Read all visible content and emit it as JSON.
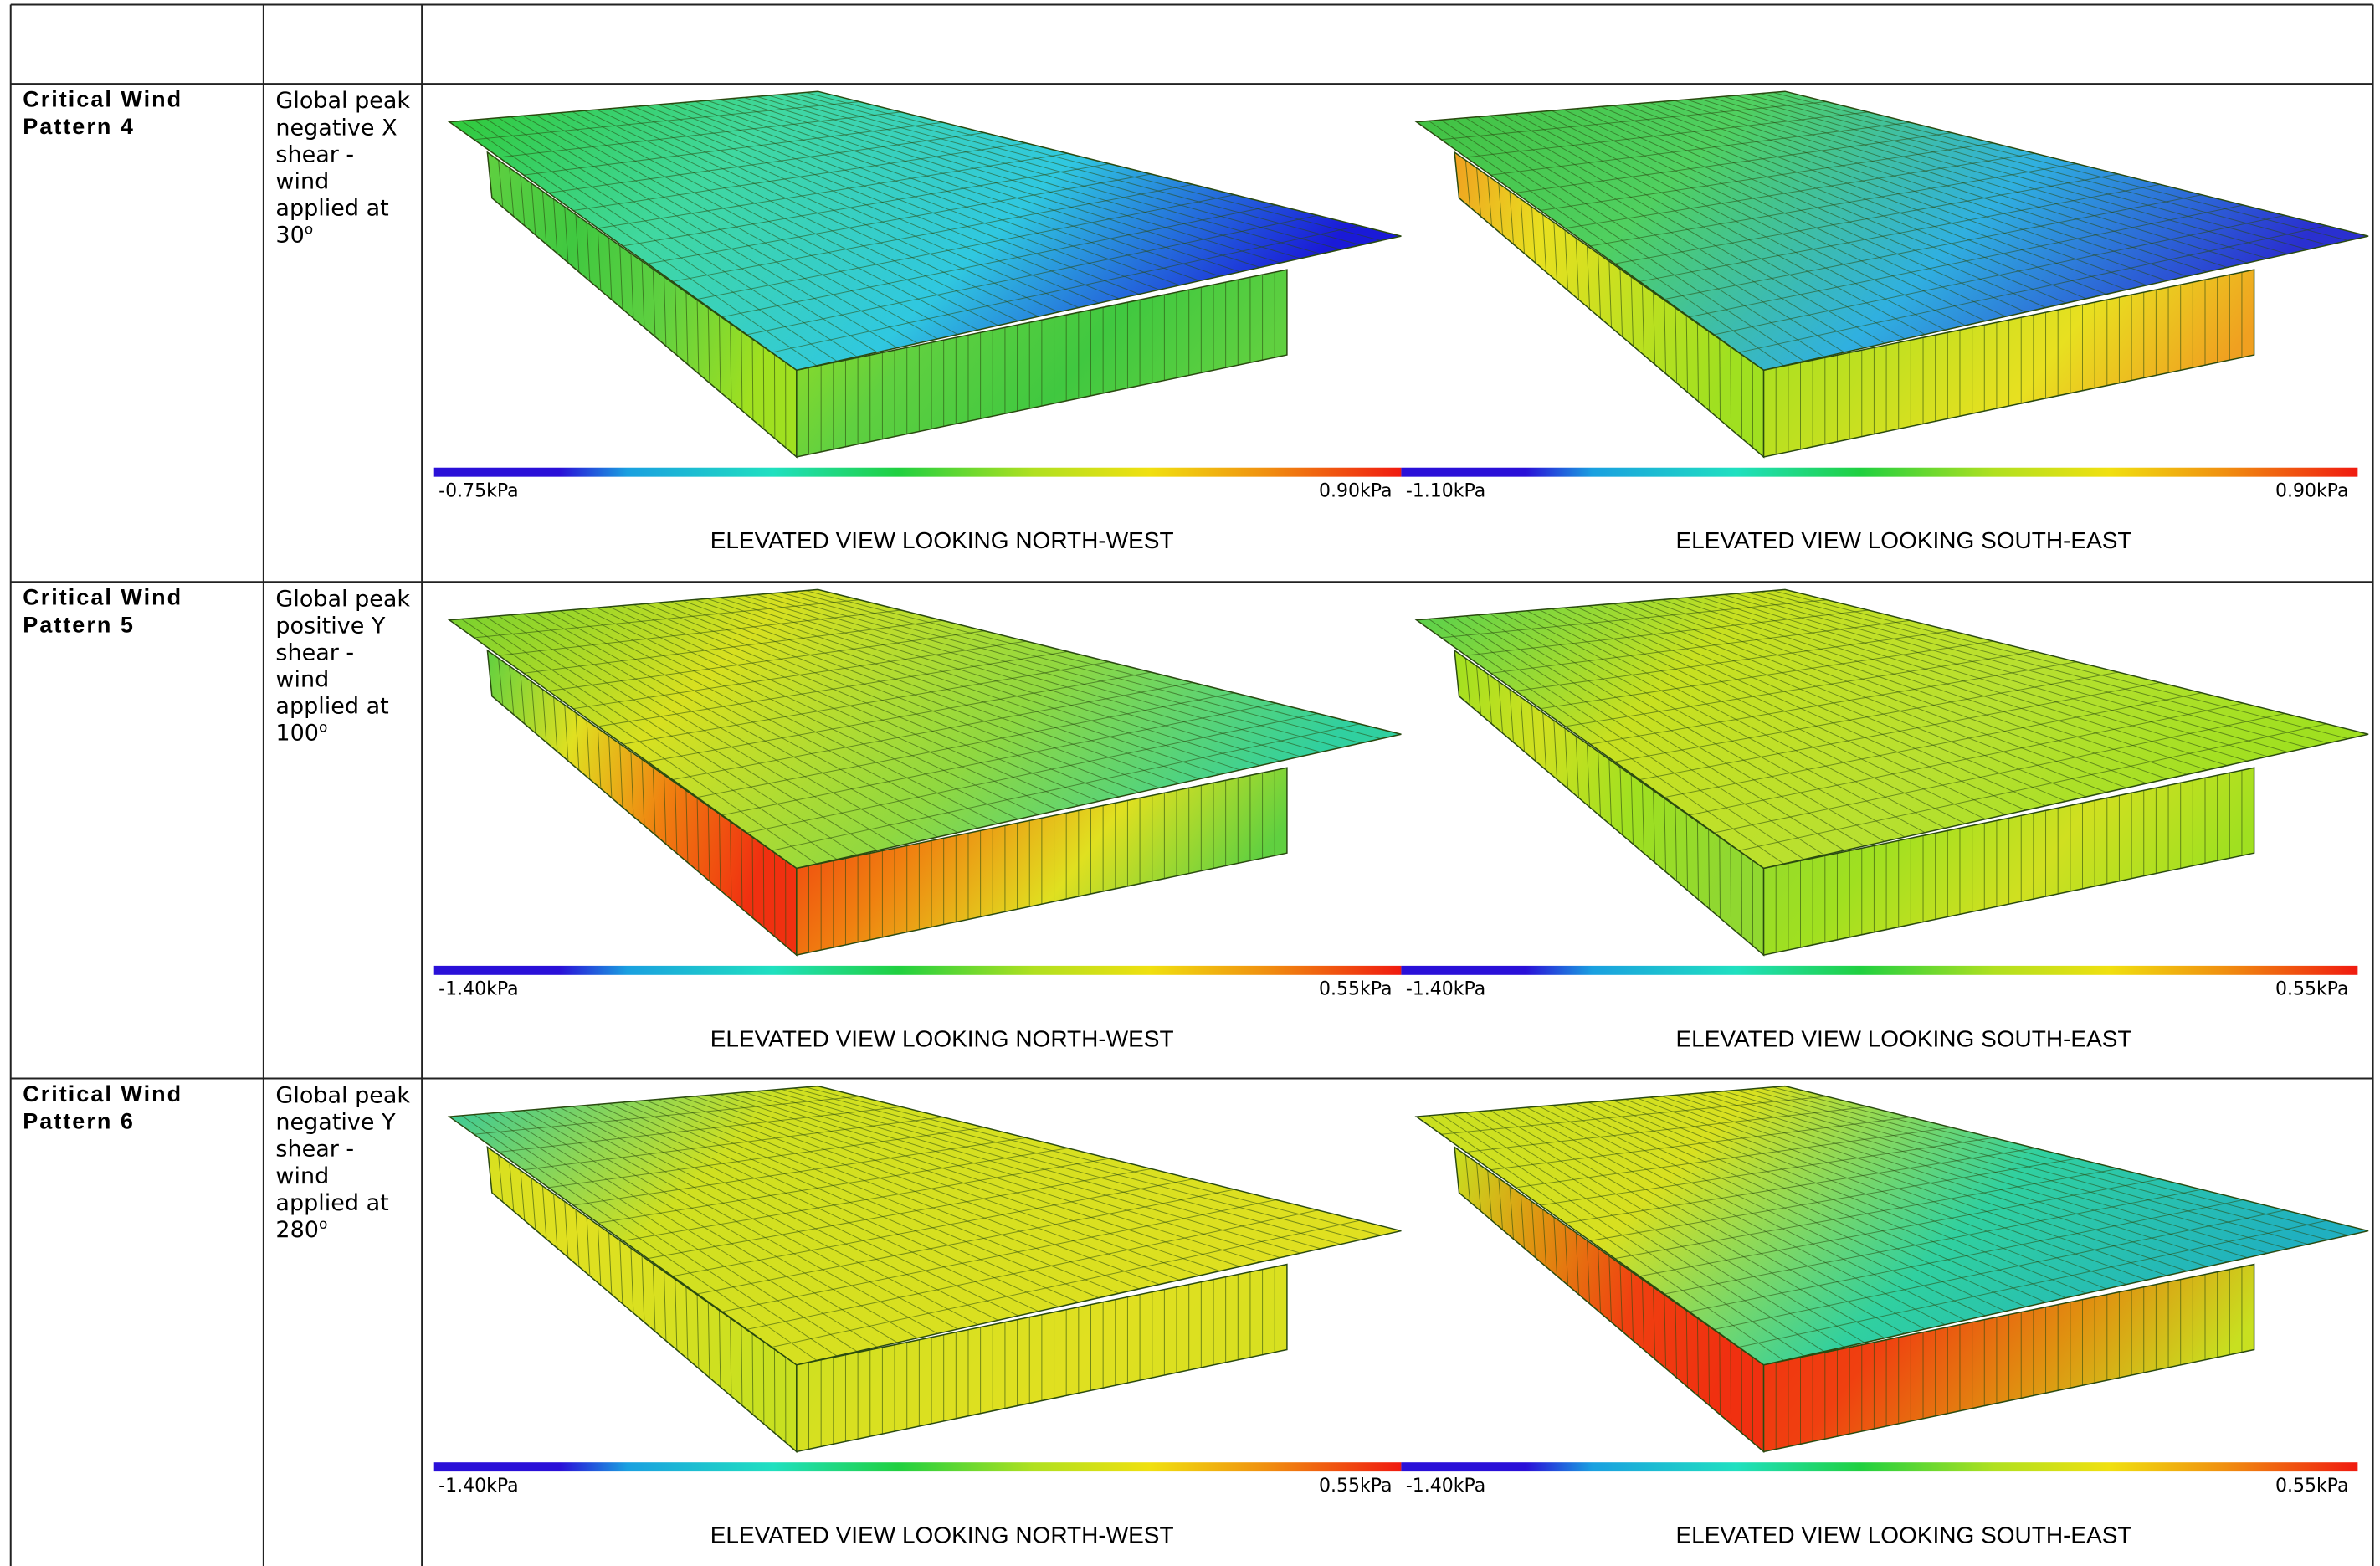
{
  "rows": [
    {
      "pattern": [
        "Critical Wind",
        "Pattern 4"
      ],
      "description": [
        "Global peak",
        "negative X",
        "shear -",
        "wind",
        "applied at",
        "30"
      ],
      "degree": "o",
      "views": [
        {
          "min": "-0.75kPa",
          "max": "0.90kPa",
          "label": "ELEVATED VIEW LOOKING NORTH-WEST"
        },
        {
          "min": "-1.10kPa",
          "max": "0.90kPa",
          "label": "ELEVATED VIEW LOOKING SOUTH-EAST"
        }
      ]
    },
    {
      "pattern": [
        "Critical Wind",
        "Pattern 5"
      ],
      "description": [
        "Global peak",
        "positive Y",
        "shear -",
        "wind",
        "applied at",
        "100"
      ],
      "degree": "o",
      "views": [
        {
          "min": "-1.40kPa",
          "max": "0.55kPa",
          "label": "ELEVATED VIEW LOOKING NORTH-WEST"
        },
        {
          "min": "-1.40kPa",
          "max": "0.55kPa",
          "label": "ELEVATED VIEW LOOKING SOUTH-EAST"
        }
      ]
    },
    {
      "pattern": [
        "Critical Wind",
        "Pattern 6"
      ],
      "description": [
        "Global peak",
        "negative Y",
        "shear -",
        "wind",
        "applied at",
        "280"
      ],
      "degree": "o",
      "views": [
        {
          "min": "-1.40kPa",
          "max": "0.55kPa",
          "label": "ELEVATED VIEW LOOKING NORTH-WEST"
        },
        {
          "min": "-1.40kPa",
          "max": "0.55kPa",
          "label": "ELEVATED VIEW LOOKING SOUTH-EAST"
        }
      ]
    }
  ]
}
